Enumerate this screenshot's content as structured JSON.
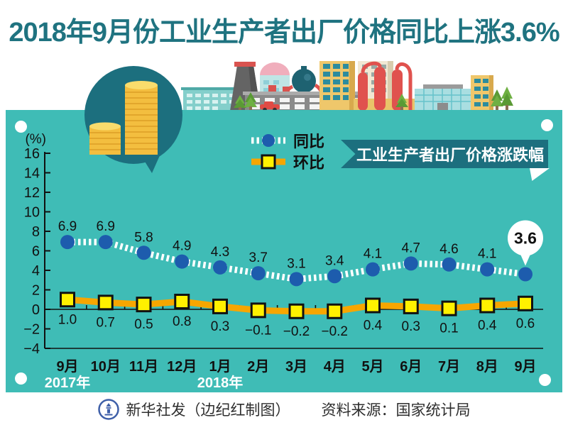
{
  "title": "2018年9月份工业生产者出厂价格同比上涨3.6%",
  "colors": {
    "panel": "#3fbcb6",
    "dark_teal": "#1c6f7e",
    "title": "#1f7380",
    "blue": "#1d5cad",
    "orange": "#f7a600",
    "yellow": "#fff100"
  },
  "chart_data": {
    "type": "line",
    "title": "工业生产者出厂价格涨跌幅",
    "ylabel": "(%)",
    "ylim": [
      -4,
      16
    ],
    "ytick_step": 2,
    "grid": false,
    "legend_position": "top-center",
    "categories": [
      "9月",
      "10月",
      "11月",
      "12月",
      "1月",
      "2月",
      "3月",
      "4月",
      "5月",
      "6月",
      "7月",
      "8月",
      "9月"
    ],
    "year_labels": [
      {
        "label": "2017年",
        "index": 0
      },
      {
        "label": "2018年",
        "index": 4
      }
    ],
    "series": [
      {
        "name": "同比",
        "values": [
          6.9,
          6.9,
          5.8,
          4.9,
          4.3,
          3.7,
          3.1,
          3.4,
          4.1,
          4.7,
          4.6,
          4.1,
          3.6
        ]
      },
      {
        "name": "环比",
        "values": [
          1.0,
          0.7,
          0.5,
          0.8,
          0.3,
          -0.1,
          -0.2,
          -0.2,
          0.4,
          0.3,
          0.1,
          0.4,
          0.6
        ]
      }
    ],
    "callout": {
      "series": 0,
      "index": 12,
      "label": "3.6"
    }
  },
  "footer": {
    "credit": "新华社发（边纪红制图）",
    "source": "资料来源：国家统计局"
  }
}
